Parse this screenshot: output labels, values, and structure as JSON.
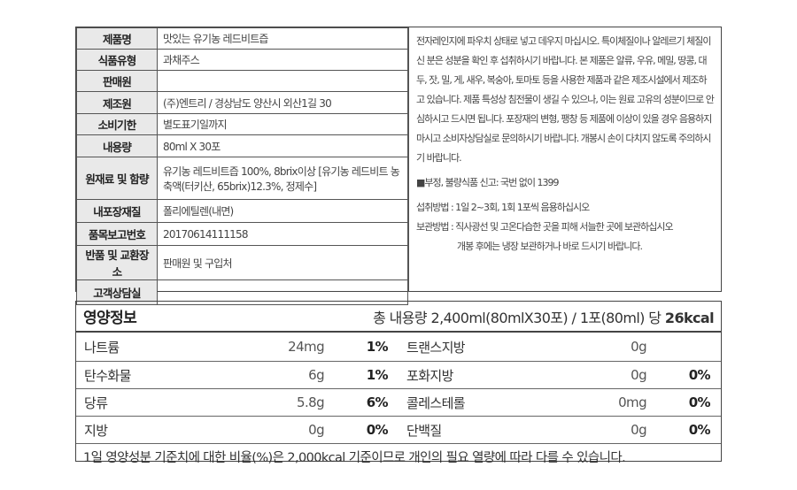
{
  "info_table": [
    {
      "label": "제품명",
      "value": "맛있는 유기농 레드비트즙"
    },
    {
      "label": "식품유형",
      "value": "과채주스"
    },
    {
      "label": "판매원",
      "value": ""
    },
    {
      "label": "제조원",
      "value": "(주)엔트리 / 경상남도 양산시 외산1길 30"
    },
    {
      "label": "소비기한",
      "value": "별도표기일까지"
    },
    {
      "label": "내용량",
      "value": "80ml X 30포"
    },
    {
      "label": "원재료 및 함량",
      "value": "유기농 레드비트즙 100%, 8brix이상 [유기농 레드비트 농축액(터키산, 65brix)12.3%, 정제수]"
    },
    {
      "label": "내포장재질",
      "value": "폴리에틸렌(내면)"
    },
    {
      "label": "품목보고번호",
      "value": "20170614111158"
    },
    {
      "label": "반품 및 교환장소",
      "value": "판매원 및 구입처"
    },
    {
      "label": "고객상담실",
      "value": ""
    }
  ],
  "notes": {
    "caution": "전자레인지에 파우치 상태로 넣고 데우지 마십시오. 특이체질이나 알레르기 체질이신 분은 성분을 확인 후 섭취하시기 바랍니다. 본 제품은 알류, 우유, 메밀, 땅콩, 대두, 잣, 밀, 게, 새우, 복숭아, 토마토 등을 사용한 제품과 같은 제조시설에서 제조하고 있습니다. 제품 특성상 침전물이 생길 수 있으나, 이는 원료 고유의 성분이므로 안심하시고 드시면 됩니다. 포장재의 변형, 팽창 등 제품에 이상이 있을 경우 음용하지 마시고 소비자상담실로 문의하시기 바랍니다. 개봉시 손이 다치지 않도록 주의하시기 바랍니다.",
    "report": "■부정, 불량식품 신고: 국번 없이 1399",
    "intake": "섭취방법 : 1일 2~3회, 1회 1포씩 음용하십시오",
    "storage": "보관방법 : 직사광선 및 고온다습한 곳을 피해 서늘한 곳에 보관하십시오",
    "storage2": "개봉 후에는 냉장 보관하거나 바로 드시기 바랍니다."
  },
  "nutrition": {
    "title": "영양정보",
    "serving": "총 내용량 2,400ml(80mlX30포) / 1포(80ml) 당",
    "kcal": "26kcal",
    "rows": [
      [
        {
          "name": "나트륨",
          "value": "24mg",
          "pct": "1%"
        },
        {
          "name": "트랜스지방",
          "value": "0g",
          "pct": ""
        }
      ],
      [
        {
          "name": "탄수화물",
          "value": "6g",
          "pct": "1%"
        },
        {
          "name": "포화지방",
          "value": "0g",
          "pct": "0%"
        }
      ],
      [
        {
          "name": "당류",
          "value": "5.8g",
          "pct": "6%"
        },
        {
          "name": "콜레스테롤",
          "value": "0mg",
          "pct": "0%"
        }
      ],
      [
        {
          "name": "지방",
          "value": "0g",
          "pct": "0%"
        },
        {
          "name": "단백질",
          "value": "0g",
          "pct": "0%"
        }
      ]
    ],
    "footnote": "1일 영양성분 기준치에 대한 비율(%)은 2,000kcal 기준이므로 개인의 필요 열량에 따라 다를 수 있습니다."
  }
}
